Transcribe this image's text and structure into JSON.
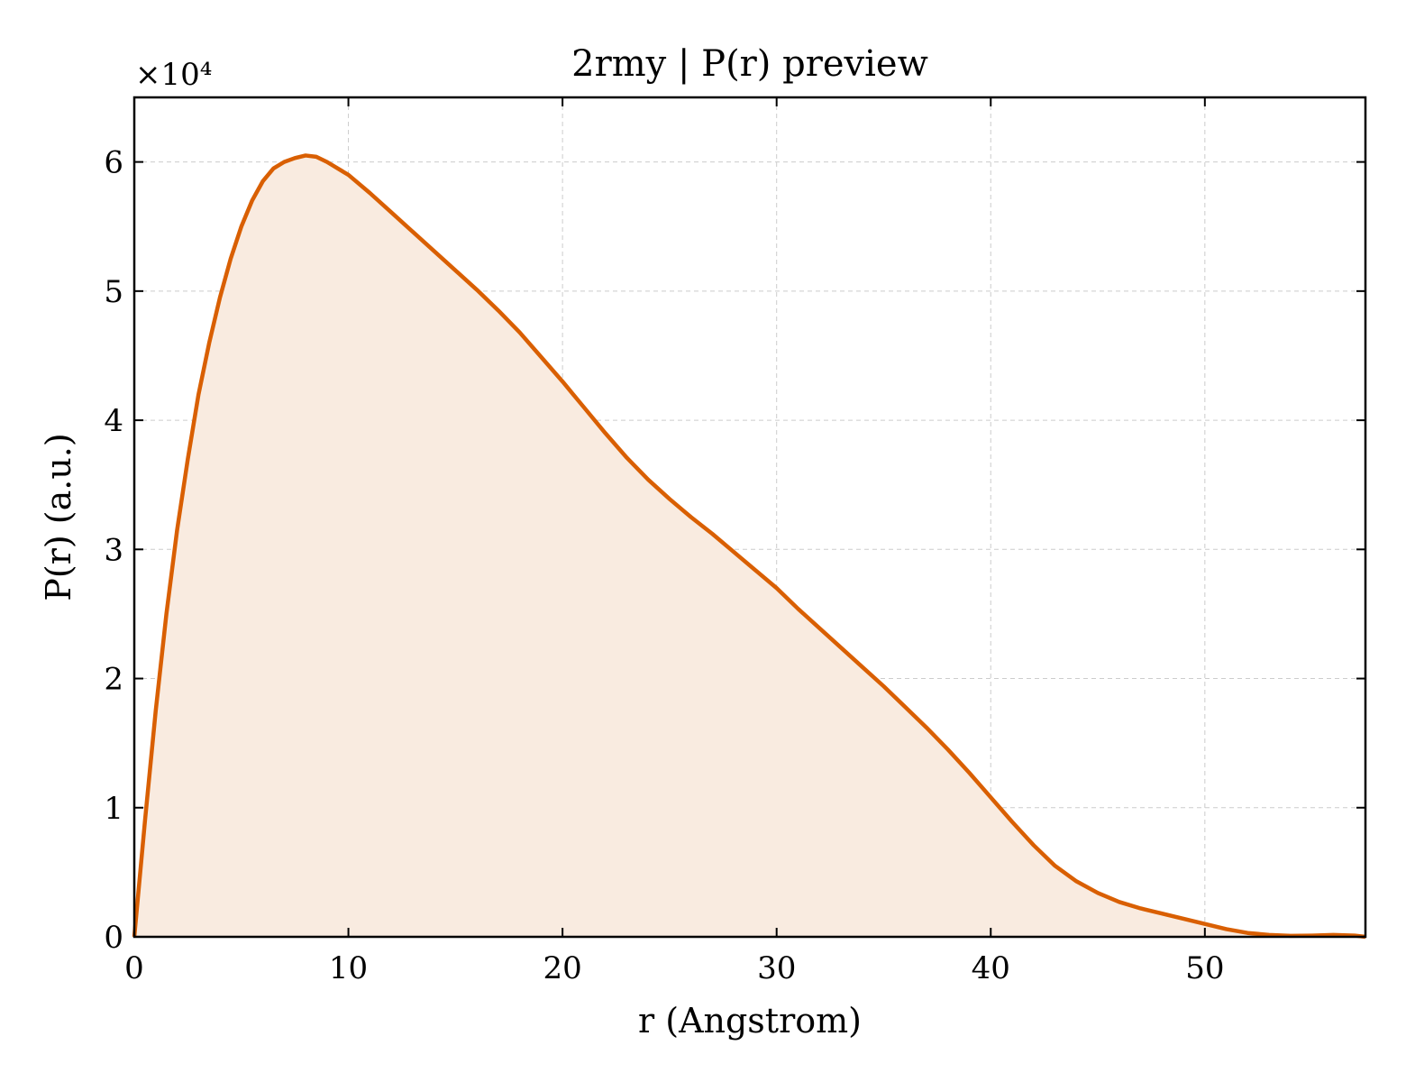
{
  "chart_data": {
    "type": "area",
    "title": "2rmy | P(r) preview",
    "xlabel": "r (Angstrom)",
    "ylabel": "P(r) (a.u.)",
    "y_multiplier_label": "×10⁴",
    "y_scale_factor": 10000,
    "xlim": [
      0,
      57.5
    ],
    "ylim": [
      0,
      65000
    ],
    "xticks": [
      0,
      10,
      20,
      30,
      40,
      50
    ],
    "yticks": [
      0,
      10000,
      20000,
      30000,
      40000,
      50000,
      60000
    ],
    "ytick_labels": [
      "0",
      "1",
      "2",
      "3",
      "4",
      "5",
      "6"
    ],
    "grid": true,
    "line_color": "#d95f02",
    "fill_color": "#f9ebe0",
    "series": [
      {
        "x": [
          0,
          0.5,
          1,
          1.5,
          2,
          2.5,
          3,
          3.5,
          4,
          4.5,
          5,
          5.5,
          6,
          6.5,
          7,
          7.5,
          8,
          8.5,
          9,
          10,
          11,
          12,
          13,
          14,
          15,
          16,
          17,
          18,
          19,
          20,
          21,
          22,
          23,
          24,
          25,
          26,
          27,
          28,
          29,
          30,
          31,
          32,
          33,
          34,
          35,
          36,
          37,
          38,
          39,
          40,
          41,
          42,
          43,
          44,
          45,
          46,
          47,
          48,
          49,
          50,
          51,
          52,
          53,
          54,
          55,
          56,
          57,
          57.5
        ],
        "values": [
          0,
          9000,
          17500,
          25000,
          31500,
          37000,
          42000,
          46000,
          49500,
          52500,
          55000,
          57000,
          58500,
          59500,
          60000,
          60300,
          60500,
          60400,
          60000,
          59000,
          57600,
          56100,
          54600,
          53100,
          51600,
          50100,
          48500,
          46800,
          44900,
          43000,
          41000,
          39000,
          37100,
          35400,
          33900,
          32500,
          31200,
          29800,
          28400,
          27000,
          25400,
          23900,
          22400,
          20900,
          19400,
          17800,
          16200,
          14500,
          12700,
          10800,
          8900,
          7100,
          5500,
          4300,
          3400,
          2700,
          2200,
          1800,
          1400,
          1000,
          600,
          300,
          150,
          80,
          100,
          150,
          100,
          0
        ]
      }
    ]
  }
}
